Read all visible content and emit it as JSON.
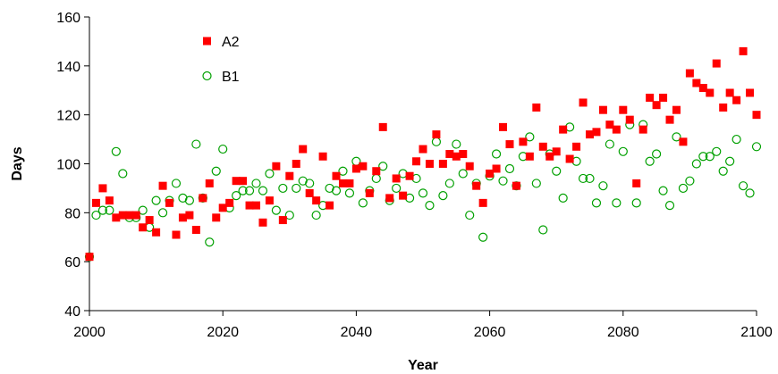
{
  "chart_data": {
    "type": "scatter",
    "xlabel": "Year",
    "ylabel": "Days",
    "xlim": [
      2000,
      2100
    ],
    "ylim": [
      40,
      160
    ],
    "x_ticks": [
      2000,
      2020,
      2040,
      2060,
      2080,
      2100
    ],
    "y_ticks": [
      40,
      60,
      80,
      100,
      120,
      140,
      160
    ],
    "grid": false,
    "legend_position": "top-left",
    "series": [
      {
        "name": "A2",
        "marker": "filled-square",
        "color": "#ff0000",
        "x": [
          2000,
          2001,
          2002,
          2003,
          2004,
          2005,
          2006,
          2007,
          2008,
          2009,
          2010,
          2011,
          2012,
          2013,
          2014,
          2015,
          2016,
          2017,
          2018,
          2019,
          2020,
          2021,
          2022,
          2023,
          2024,
          2025,
          2026,
          2027,
          2028,
          2029,
          2030,
          2031,
          2032,
          2033,
          2034,
          2035,
          2036,
          2037,
          2038,
          2039,
          2040,
          2041,
          2042,
          2043,
          2044,
          2045,
          2046,
          2047,
          2048,
          2049,
          2050,
          2051,
          2052,
          2053,
          2054,
          2055,
          2056,
          2057,
          2058,
          2059,
          2060,
          2061,
          2062,
          2063,
          2064,
          2065,
          2066,
          2067,
          2068,
          2069,
          2070,
          2071,
          2072,
          2073,
          2074,
          2075,
          2076,
          2077,
          2078,
          2079,
          2080,
          2081,
          2082,
          2083,
          2084,
          2085,
          2086,
          2087,
          2088,
          2089,
          2090,
          2091,
          2092,
          2093,
          2094,
          2095,
          2096,
          2097,
          2098,
          2099,
          2100
        ],
        "y": [
          62,
          84,
          90,
          85,
          78,
          79,
          79,
          79,
          74,
          77,
          72,
          91,
          84,
          71,
          78,
          79,
          73,
          86,
          92,
          78,
          82,
          84,
          93,
          93,
          83,
          83,
          76,
          85,
          99,
          77,
          95,
          100,
          106,
          88,
          85,
          103,
          83,
          95,
          92,
          92,
          98,
          99,
          88,
          97,
          115,
          86,
          94,
          87,
          95,
          101,
          106,
          100,
          112,
          100,
          104,
          103,
          104,
          99,
          91,
          84,
          96,
          98,
          115,
          108,
          91,
          109,
          103,
          123,
          107,
          103,
          105,
          114,
          102,
          107,
          125,
          112,
          113,
          122,
          116,
          114,
          122,
          118,
          92,
          114,
          127,
          124,
          127,
          118,
          122,
          109,
          137,
          133,
          131,
          129,
          141,
          123,
          129,
          126,
          146,
          129,
          120
        ]
      },
      {
        "name": "B1",
        "marker": "open-circle",
        "color": "#00a000",
        "x": [
          2000,
          2001,
          2002,
          2003,
          2004,
          2005,
          2006,
          2007,
          2008,
          2009,
          2010,
          2011,
          2012,
          2013,
          2014,
          2015,
          2016,
          2017,
          2018,
          2019,
          2020,
          2021,
          2022,
          2023,
          2024,
          2025,
          2026,
          2027,
          2028,
          2029,
          2030,
          2031,
          2032,
          2033,
          2034,
          2035,
          2036,
          2037,
          2038,
          2039,
          2040,
          2041,
          2042,
          2043,
          2044,
          2045,
          2046,
          2047,
          2048,
          2049,
          2050,
          2051,
          2052,
          2053,
          2054,
          2055,
          2056,
          2057,
          2058,
          2059,
          2060,
          2061,
          2062,
          2063,
          2064,
          2065,
          2066,
          2067,
          2068,
          2069,
          2070,
          2071,
          2072,
          2073,
          2074,
          2075,
          2076,
          2077,
          2078,
          2079,
          2080,
          2081,
          2082,
          2083,
          2084,
          2085,
          2086,
          2087,
          2088,
          2089,
          2090,
          2091,
          2092,
          2093,
          2094,
          2095,
          2096,
          2097,
          2098,
          2099,
          2100
        ],
        "y": [
          62,
          79,
          81,
          81,
          105,
          96,
          78,
          78,
          81,
          74,
          85,
          80,
          85,
          92,
          86,
          85,
          108,
          86,
          68,
          97,
          106,
          82,
          87,
          89,
          89,
          92,
          89,
          96,
          81,
          90,
          79,
          90,
          93,
          92,
          79,
          83,
          90,
          89,
          97,
          88,
          101,
          84,
          89,
          94,
          99,
          85,
          90,
          96,
          86,
          94,
          88,
          83,
          109,
          87,
          92,
          108,
          96,
          79,
          92,
          70,
          95,
          104,
          93,
          98,
          91,
          103,
          111,
          92,
          73,
          104,
          97,
          86,
          115,
          101,
          94,
          94,
          84,
          91,
          108,
          84,
          105,
          116,
          84,
          116,
          101,
          104,
          89,
          83,
          111,
          90,
          93,
          100,
          103,
          103,
          105,
          97,
          101,
          110,
          91,
          88,
          107
        ]
      }
    ]
  }
}
